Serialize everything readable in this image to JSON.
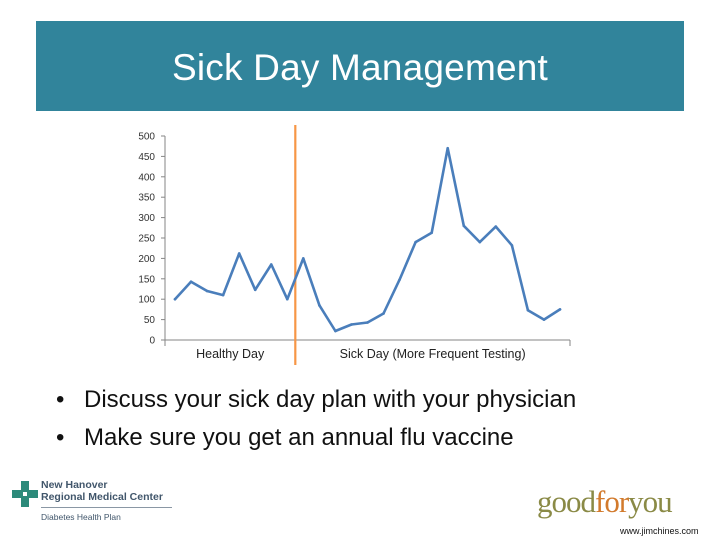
{
  "header": {
    "title": "Sick Day Management"
  },
  "chart_data": {
    "type": "line",
    "title": "",
    "xlabel": "",
    "ylabel": "",
    "ylim": [
      0,
      500
    ],
    "yticks": [
      0,
      50,
      100,
      150,
      200,
      250,
      300,
      350,
      400,
      450,
      500
    ],
    "grid": false,
    "legend": "none",
    "section_labels": [
      "Healthy Day",
      "Sick Day (More Frequent Testing)"
    ],
    "divider_after_index": 7,
    "series": [
      {
        "color": "#4a7ebb",
        "values": [
          100,
          143,
          120,
          110,
          212,
          123,
          185,
          100,
          200,
          85,
          22,
          38,
          43,
          65,
          148,
          240,
          263,
          470,
          280,
          240,
          278,
          232,
          73,
          50,
          75
        ]
      }
    ],
    "divider_color": "#f79646"
  },
  "bullets": [
    {
      "symbol": "•",
      "text": "Discuss your sick day plan with your physician"
    },
    {
      "symbol": "•",
      "text": "Make sure you get an annual flu vaccine"
    }
  ],
  "footer": {
    "org_line1": "New Hanover",
    "org_line2": "Regional Medical Center",
    "org_line3": "Diabetes Health Plan",
    "brand_part1": "good",
    "brand_part2": "for",
    "brand_part3": "you",
    "website": "www.jimchines.com"
  }
}
